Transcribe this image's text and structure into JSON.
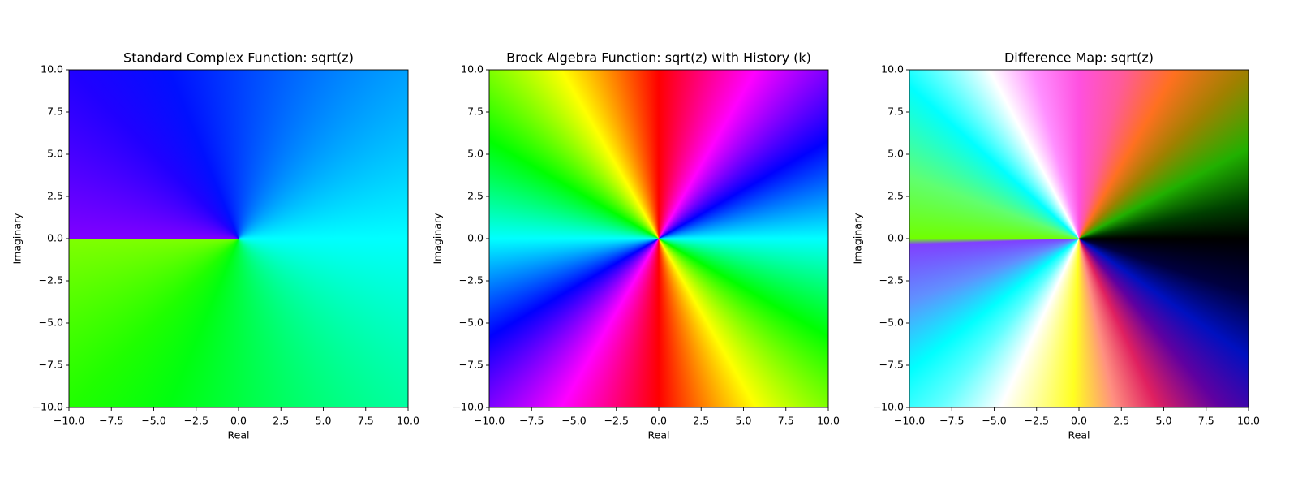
{
  "chart_data": [
    {
      "type": "image",
      "title": "Standard Complex Function: sqrt(z)",
      "x_label": "Real",
      "y_label": "Imaginary",
      "xlim": [
        -10,
        10
      ],
      "ylim": [
        -10,
        10
      ],
      "xticks": [
        {
          "value": -10,
          "label": "−10.0"
        },
        {
          "value": -7.5,
          "label": "−7.5"
        },
        {
          "value": -5,
          "label": "−5.0"
        },
        {
          "value": -2.5,
          "label": "−2.5"
        },
        {
          "value": 0,
          "label": "0.0"
        },
        2.5,
        {
          "value": 5,
          "label": "5.0"
        },
        7.5,
        {
          "value": 10,
          "label": "10.0"
        }
      ],
      "yticks": [
        {
          "value": -10,
          "label": "−10.0"
        },
        {
          "value": -7.5,
          "label": "−7.5"
        },
        {
          "value": -5,
          "label": "−5.0"
        },
        {
          "value": -2.5,
          "label": "−2.5"
        },
        {
          "value": 0,
          "label": "0.0"
        },
        2.5,
        {
          "value": 5,
          "label": "5.0"
        },
        7.5,
        {
          "value": 10,
          "label": "10.0"
        }
      ]
    },
    {
      "type": "image",
      "title": "Brock Algebra Function: sqrt(z) with History (k)",
      "x_label": "Real",
      "y_label": "Imaginary",
      "xlim": [
        -10,
        10
      ],
      "ylim": [
        -10,
        10
      ],
      "xticks": [
        {
          "value": -10,
          "label": "−10.0"
        },
        {
          "value": -7.5,
          "label": "−7.5"
        },
        {
          "value": -5,
          "label": "−5.0"
        },
        {
          "value": -2.5,
          "label": "−2.5"
        },
        {
          "value": 0,
          "label": "0.0"
        },
        2.5,
        {
          "value": 5,
          "label": "5.0"
        },
        7.5,
        {
          "value": 10,
          "label": "10.0"
        }
      ],
      "yticks": [
        {
          "value": -10,
          "label": "−10.0"
        },
        {
          "value": -7.5,
          "label": "−7.5"
        },
        {
          "value": -5,
          "label": "−5.0"
        },
        {
          "value": -2.5,
          "label": "−2.5"
        },
        {
          "value": 0,
          "label": "0.0"
        },
        2.5,
        {
          "value": 5,
          "label": "5.0"
        },
        7.5,
        {
          "value": 10,
          "label": "10.0"
        }
      ]
    },
    {
      "type": "image",
      "title": "Difference Map: sqrt(z)",
      "x_label": "Real",
      "y_label": "Imaginary",
      "xlim": [
        -10,
        10
      ],
      "ylim": [
        -10,
        10
      ],
      "xticks": [
        {
          "value": -10,
          "label": "−10.0"
        },
        {
          "value": -7.5,
          "label": "−7.5"
        },
        {
          "value": -5,
          "label": "−5.0"
        },
        {
          "value": -2.5,
          "label": "−2.5"
        },
        {
          "value": 0,
          "label": "0.0"
        },
        2.5,
        {
          "value": 5,
          "label": "5.0"
        },
        7.5,
        {
          "value": 10,
          "label": "10.0"
        }
      ],
      "yticks": [
        {
          "value": -10,
          "label": "−10.0"
        },
        {
          "value": -7.5,
          "label": "−7.5"
        },
        {
          "value": -5,
          "label": "−5.0"
        },
        {
          "value": -2.5,
          "label": "−2.5"
        },
        {
          "value": 0,
          "label": "0.0"
        },
        2.5,
        {
          "value": 5,
          "label": "5.0"
        },
        7.5,
        {
          "value": 10,
          "label": "10.0"
        }
      ]
    }
  ]
}
